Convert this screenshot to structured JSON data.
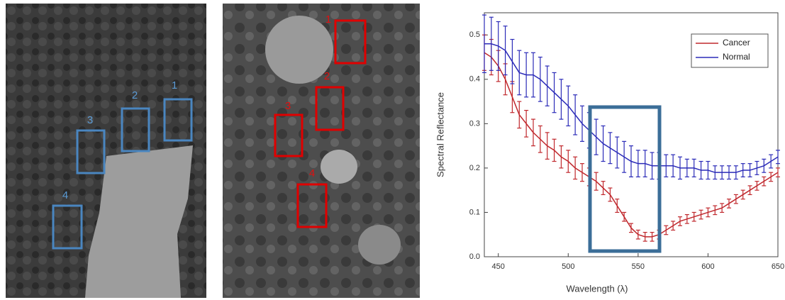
{
  "image_left": {
    "regions": [
      "1",
      "2",
      "3",
      "4"
    ]
  },
  "image_right": {
    "regions": [
      "1",
      "2",
      "3",
      "4"
    ]
  },
  "chart_data": {
    "type": "line",
    "x_label": "Wavelength (λ)",
    "y_label": "Spectral Reflectance",
    "xlim": [
      440,
      650
    ],
    "ylim": [
      0,
      0.55
    ],
    "xticks": [
      450,
      500,
      550,
      600,
      650
    ],
    "yticks": [
      {
        "value": 0,
        "label": "0.0"
      },
      0.1,
      0.2,
      0.3,
      0.4,
      0.5
    ],
    "legend": "upper right",
    "x": [
      440,
      445,
      450,
      455,
      460,
      465,
      470,
      475,
      480,
      485,
      490,
      495,
      500,
      505,
      510,
      515,
      520,
      525,
      530,
      535,
      540,
      545,
      550,
      555,
      560,
      565,
      570,
      575,
      580,
      585,
      590,
      595,
      600,
      605,
      610,
      615,
      620,
      625,
      630,
      635,
      640,
      645,
      650
    ],
    "series": [
      {
        "name": "Cancer",
        "color": "#c0282d",
        "values": [
          0.46,
          0.45,
          0.43,
          0.4,
          0.36,
          0.32,
          0.3,
          0.28,
          0.265,
          0.25,
          0.24,
          0.225,
          0.215,
          0.2,
          0.19,
          0.18,
          0.17,
          0.155,
          0.14,
          0.115,
          0.09,
          0.065,
          0.05,
          0.045,
          0.045,
          0.05,
          0.06,
          0.07,
          0.08,
          0.085,
          0.09,
          0.095,
          0.1,
          0.105,
          0.11,
          0.12,
          0.13,
          0.14,
          0.15,
          0.16,
          0.17,
          0.18,
          0.19
        ],
        "errors": [
          0.04,
          0.04,
          0.035,
          0.035,
          0.035,
          0.03,
          0.03,
          0.03,
          0.03,
          0.03,
          0.025,
          0.025,
          0.025,
          0.025,
          0.02,
          0.02,
          0.02,
          0.015,
          0.015,
          0.015,
          0.01,
          0.01,
          0.01,
          0.01,
          0.01,
          0.01,
          0.01,
          0.01,
          0.01,
          0.01,
          0.01,
          0.01,
          0.01,
          0.01,
          0.01,
          0.01,
          0.01,
          0.01,
          0.01,
          0.01,
          0.01,
          0.01,
          0.01
        ]
      },
      {
        "name": "Normal",
        "color": "#2b2bb8",
        "values": [
          0.48,
          0.48,
          0.475,
          0.465,
          0.44,
          0.415,
          0.41,
          0.41,
          0.4,
          0.385,
          0.37,
          0.355,
          0.34,
          0.32,
          0.3,
          0.285,
          0.27,
          0.255,
          0.245,
          0.235,
          0.225,
          0.215,
          0.21,
          0.21,
          0.205,
          0.205,
          0.205,
          0.205,
          0.2,
          0.2,
          0.2,
          0.195,
          0.195,
          0.19,
          0.19,
          0.19,
          0.19,
          0.195,
          0.195,
          0.2,
          0.205,
          0.215,
          0.225
        ],
        "errors": [
          0.065,
          0.06,
          0.055,
          0.055,
          0.05,
          0.05,
          0.05,
          0.05,
          0.05,
          0.045,
          0.045,
          0.045,
          0.045,
          0.045,
          0.04,
          0.04,
          0.04,
          0.04,
          0.035,
          0.035,
          0.035,
          0.035,
          0.03,
          0.03,
          0.03,
          0.03,
          0.025,
          0.025,
          0.025,
          0.02,
          0.02,
          0.02,
          0.02,
          0.015,
          0.015,
          0.015,
          0.015,
          0.015,
          0.015,
          0.015,
          0.015,
          0.015,
          0.015
        ]
      }
    ]
  }
}
